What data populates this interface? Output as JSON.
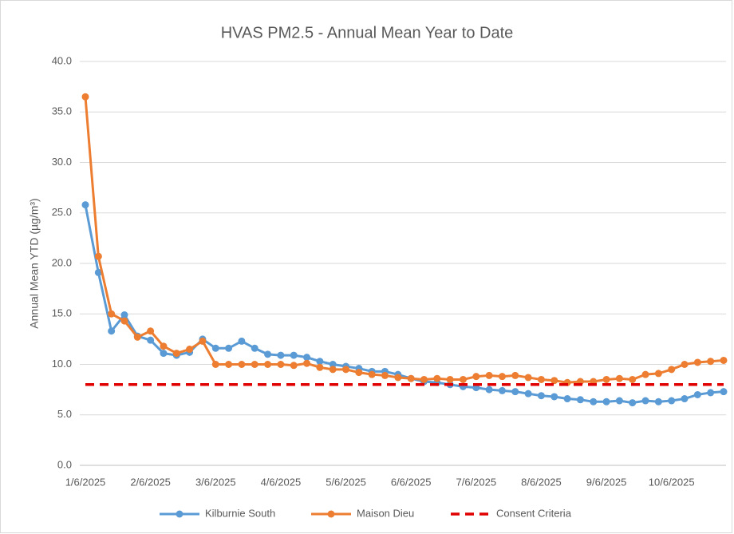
{
  "chart_data": {
    "type": "line",
    "title": "HVAS PM2.5 - Annual Mean Year to Date",
    "ylabel": "Annual Mean YTD (µg/m³)",
    "categories": [
      "1/6/2025",
      null,
      null,
      null,
      null,
      "2/6/2025",
      null,
      null,
      null,
      null,
      "3/6/2025",
      null,
      null,
      null,
      null,
      "4/6/2025",
      null,
      null,
      null,
      null,
      "5/6/2025",
      null,
      null,
      null,
      null,
      "6/6/2025",
      null,
      null,
      null,
      null,
      "7/6/2025",
      null,
      null,
      null,
      null,
      "8/6/2025",
      null,
      null,
      null,
      null,
      "9/6/2025",
      null,
      null,
      null,
      null,
      "10/6/2025",
      null,
      null,
      null,
      null
    ],
    "ylim": [
      0,
      40
    ],
    "yticks": [
      {
        "value": 0,
        "label": "0.0"
      },
      {
        "value": 5,
        "label": "5.0"
      },
      {
        "value": 10,
        "label": "10.0"
      },
      {
        "value": 15,
        "label": "15.0"
      },
      {
        "value": 20,
        "label": "20.0"
      },
      {
        "value": 25,
        "label": "25.0"
      },
      {
        "value": 30,
        "label": "30.0"
      },
      {
        "value": 35,
        "label": "35.0"
      },
      {
        "value": 40,
        "label": "40.0"
      }
    ],
    "grid": true,
    "legend": "bottom",
    "series": [
      {
        "name": "Kilburnie South",
        "color": "#5b9bd5",
        "markers": true,
        "dashed": false,
        "values": [
          25.8,
          19.1,
          13.3,
          14.9,
          12.8,
          12.4,
          11.1,
          10.9,
          11.2,
          12.5,
          11.6,
          11.6,
          12.3,
          11.6,
          11.0,
          10.9,
          10.9,
          10.7,
          10.3,
          10.0,
          9.8,
          9.6,
          9.3,
          9.3,
          9.0,
          8.6,
          8.3,
          8.2,
          8.0,
          7.8,
          7.7,
          7.5,
          7.4,
          7.3,
          7.1,
          6.9,
          6.8,
          6.6,
          6.5,
          6.3,
          6.3,
          6.4,
          6.2,
          6.4,
          6.3,
          6.4,
          6.6,
          7.0,
          7.2,
          7.3
        ]
      },
      {
        "name": "Maison Dieu",
        "color": "#ed7d31",
        "markers": true,
        "dashed": false,
        "values": [
          36.5,
          20.7,
          15.0,
          14.3,
          12.7,
          13.3,
          11.8,
          11.1,
          11.5,
          12.3,
          10.0,
          10.0,
          10.0,
          10.0,
          10.0,
          10.0,
          9.9,
          10.1,
          9.7,
          9.5,
          9.5,
          9.2,
          9.0,
          8.9,
          8.7,
          8.6,
          8.5,
          8.6,
          8.5,
          8.5,
          8.8,
          8.9,
          8.8,
          8.9,
          8.7,
          8.5,
          8.4,
          8.2,
          8.3,
          8.3,
          8.5,
          8.6,
          8.5,
          9.0,
          9.1,
          9.5,
          10.0,
          10.2,
          10.3,
          10.4
        ]
      },
      {
        "name": "Consent Criteria",
        "color": "#e00000",
        "markers": false,
        "dashed": true,
        "values": [
          8,
          8,
          8,
          8,
          8,
          8,
          8,
          8,
          8,
          8,
          8,
          8,
          8,
          8,
          8,
          8,
          8,
          8,
          8,
          8,
          8,
          8,
          8,
          8,
          8,
          8,
          8,
          8,
          8,
          8,
          8,
          8,
          8,
          8,
          8,
          8,
          8,
          8,
          8,
          8,
          8,
          8,
          8,
          8,
          8,
          8,
          8,
          8,
          8,
          8
        ]
      }
    ]
  }
}
